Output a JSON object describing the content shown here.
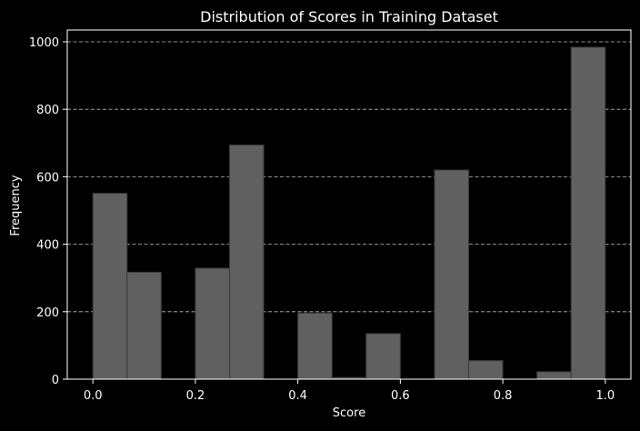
{
  "chart_data": {
    "type": "bar",
    "title": "Distribution of Scores in Training Dataset",
    "xlabel": "Score",
    "ylabel": "Frequency",
    "xlim": [
      -0.05,
      1.05
    ],
    "ylim": [
      0,
      1035
    ],
    "xticks": [
      0.0,
      0.2,
      0.4,
      0.6,
      0.8,
      1.0
    ],
    "xtick_labels": [
      "0.0",
      "0.2",
      "0.4",
      "0.6",
      "0.8",
      "1.0"
    ],
    "yticks": [
      0,
      200,
      400,
      600,
      800,
      1000
    ],
    "ytick_labels": [
      "0",
      "200",
      "400",
      "600",
      "800",
      "1000"
    ],
    "grid": "y-dashed",
    "bin_width": 0.0667,
    "bins": [
      {
        "x0": 0.0,
        "x1": 0.0667,
        "value": 551
      },
      {
        "x0": 0.0667,
        "x1": 0.1333,
        "value": 317
      },
      {
        "x0": 0.1333,
        "x1": 0.2,
        "value": 0
      },
      {
        "x0": 0.2,
        "x1": 0.2667,
        "value": 329
      },
      {
        "x0": 0.2667,
        "x1": 0.3333,
        "value": 694
      },
      {
        "x0": 0.3333,
        "x1": 0.4,
        "value": 0
      },
      {
        "x0": 0.4,
        "x1": 0.4667,
        "value": 196
      },
      {
        "x0": 0.4667,
        "x1": 0.5333,
        "value": 5
      },
      {
        "x0": 0.5333,
        "x1": 0.6,
        "value": 135
      },
      {
        "x0": 0.6,
        "x1": 0.6667,
        "value": 0
      },
      {
        "x0": 0.6667,
        "x1": 0.7333,
        "value": 620
      },
      {
        "x0": 0.7333,
        "x1": 0.8,
        "value": 55
      },
      {
        "x0": 0.8,
        "x1": 0.8667,
        "value": 0
      },
      {
        "x0": 0.8667,
        "x1": 0.9333,
        "value": 22
      },
      {
        "x0": 0.9333,
        "x1": 1.0,
        "value": 984
      }
    ],
    "colors": {
      "background": "#000000",
      "bar_fill": "#606060",
      "bar_edge": "#3a3a3a",
      "grid": "#bdbdbd",
      "axis": "#ffffff",
      "text": "#ffffff"
    }
  }
}
